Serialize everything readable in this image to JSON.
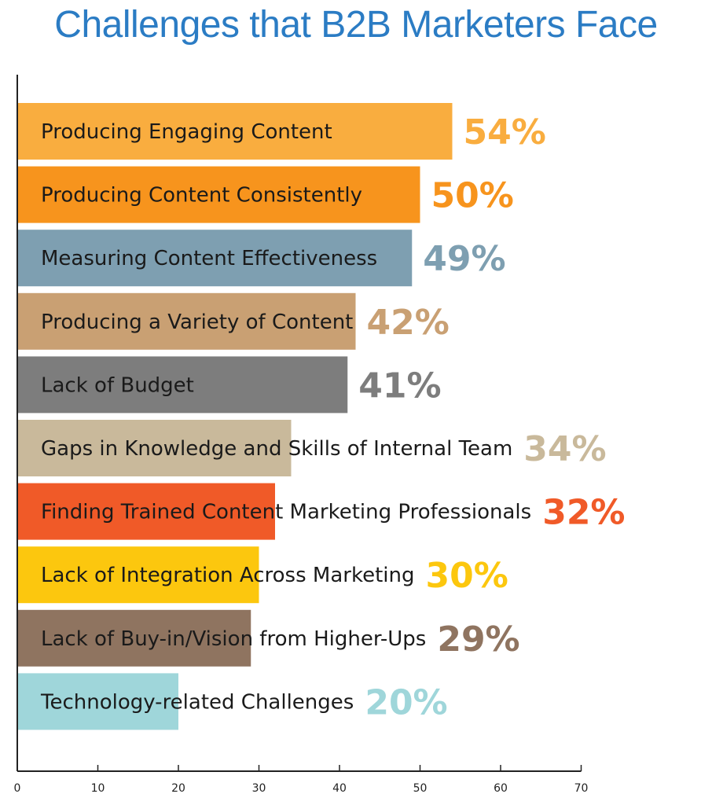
{
  "chart_data": {
    "type": "bar",
    "orientation": "horizontal",
    "title": "Challenges that B2B Marketers Face",
    "categories": [
      "Producing Engaging Content",
      "Producing Content Consistently",
      "Measuring Content Effectiveness",
      "Producing a Variety of Content",
      "Lack of Budget",
      "Gaps in Knowledge and Skills of Internal Team",
      "Finding Trained Content Marketing Professionals",
      "Lack of Integration Across Marketing",
      "Lack of Buy-in/Vision from Higher-Ups",
      "Technology-related Challenges"
    ],
    "values": [
      54,
      50,
      49,
      42,
      41,
      34,
      32,
      30,
      29,
      20
    ],
    "value_labels": [
      "54%",
      "50%",
      "49%",
      "42%",
      "41%",
      "34%",
      "32%",
      "30%",
      "29%",
      "20%"
    ],
    "colors": [
      "#f9ad3f",
      "#f7941d",
      "#7e9fb1",
      "#c9a073",
      "#7d7d7d",
      "#c9b99b",
      "#f05a28",
      "#fcc70e",
      "#8f7460",
      "#9fd6da"
    ],
    "xticks": [
      "0",
      "10",
      "20",
      "30",
      "40",
      "50",
      "60",
      "70"
    ],
    "xlim": [
      0,
      70
    ],
    "grid": false,
    "legend": "none"
  }
}
